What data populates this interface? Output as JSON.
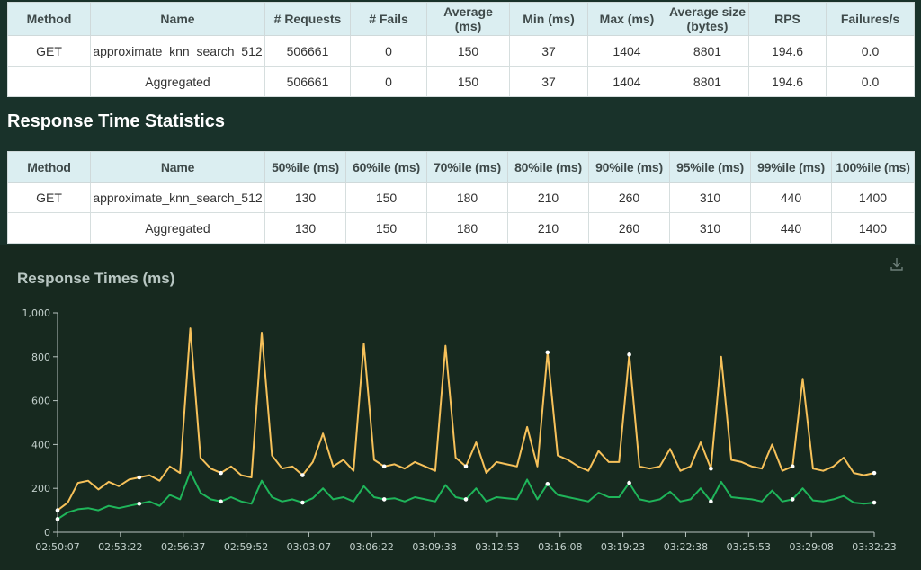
{
  "request_stats": {
    "headers": [
      "Method",
      "Name",
      "# Requests",
      "# Fails",
      "Average (ms)",
      "Min (ms)",
      "Max (ms)",
      "Average size (bytes)",
      "RPS",
      "Failures/s"
    ],
    "rows": [
      [
        "GET",
        "approximate_knn_search_512",
        "506661",
        "0",
        "150",
        "37",
        "1404",
        "8801",
        "194.6",
        "0.0"
      ],
      [
        "",
        "Aggregated",
        "506661",
        "0",
        "150",
        "37",
        "1404",
        "8801",
        "194.6",
        "0.0"
      ]
    ]
  },
  "section_title": "Response Time Statistics",
  "response_time_stats": {
    "headers": [
      "Method",
      "Name",
      "50%ile (ms)",
      "60%ile (ms)",
      "70%ile (ms)",
      "80%ile (ms)",
      "90%ile (ms)",
      "95%ile (ms)",
      "99%ile (ms)",
      "100%ile (ms)"
    ],
    "rows": [
      [
        "GET",
        "approximate_knn_search_512",
        "130",
        "150",
        "180",
        "210",
        "260",
        "310",
        "440",
        "1400"
      ],
      [
        "",
        "Aggregated",
        "130",
        "150",
        "180",
        "210",
        "260",
        "310",
        "440",
        "1400"
      ]
    ]
  },
  "chart_title": "Response Times (ms)",
  "download_icon": "download-icon",
  "colors": {
    "p95": "#f6c15a",
    "p50": "#1fb55a",
    "background": "#17291f"
  },
  "chart_data": {
    "type": "line",
    "title": "Response Times (ms)",
    "ylim": [
      0,
      1000
    ],
    "y_ticks": [
      "0",
      "200",
      "400",
      "600",
      "800",
      "1,000"
    ],
    "x_ticks": [
      "02:50:07",
      "02:53:22",
      "02:56:37",
      "02:59:52",
      "03:03:07",
      "03:06:22",
      "03:09:38",
      "03:12:53",
      "03:16:08",
      "03:19:23",
      "03:22:38",
      "03:25:53",
      "03:29:08",
      "03:32:23"
    ],
    "grid": false,
    "series": [
      {
        "values": [
          100,
          135,
          225,
          235,
          195,
          230,
          210,
          240,
          250,
          260,
          235,
          300,
          270,
          930,
          340,
          290,
          270,
          300,
          260,
          250,
          910,
          350,
          290,
          300,
          260,
          320,
          450,
          300,
          330,
          280,
          860,
          330,
          300,
          310,
          290,
          320,
          300,
          280,
          850,
          340,
          300,
          410,
          270,
          320,
          310,
          300,
          480,
          300,
          820,
          350,
          330,
          300,
          280,
          370,
          320,
          320,
          810,
          300,
          290,
          300,
          380,
          280,
          300,
          410,
          290,
          800,
          330,
          320,
          300,
          290,
          400,
          280,
          300,
          700,
          290,
          280,
          300,
          340,
          270,
          260,
          270
        ]
      },
      {
        "values": [
          60,
          90,
          105,
          110,
          100,
          120,
          110,
          120,
          130,
          140,
          120,
          170,
          150,
          275,
          180,
          150,
          140,
          160,
          140,
          130,
          235,
          160,
          140,
          150,
          135,
          155,
          200,
          150,
          160,
          140,
          210,
          160,
          150,
          155,
          140,
          160,
          150,
          140,
          215,
          160,
          150,
          200,
          140,
          160,
          155,
          150,
          240,
          150,
          220,
          170,
          160,
          150,
          140,
          180,
          160,
          160,
          225,
          150,
          140,
          150,
          185,
          140,
          150,
          200,
          140,
          230,
          160,
          155,
          150,
          140,
          190,
          140,
          150,
          200,
          145,
          140,
          150,
          165,
          135,
          130,
          135
        ]
      }
    ]
  }
}
